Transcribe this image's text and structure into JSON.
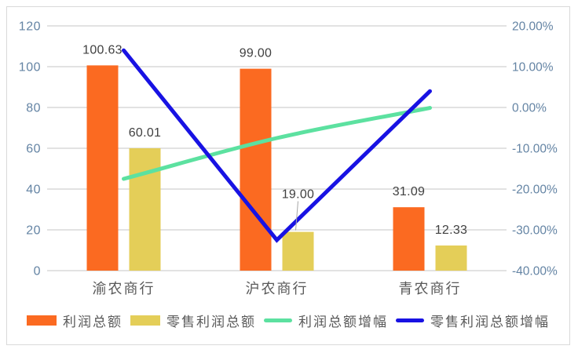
{
  "chart_data": {
    "type": "bar",
    "subtype": "combo-bar-line-dual-axis",
    "title": "",
    "xlabel": "",
    "ylabel": "",
    "grid": true,
    "legend_position": "bottom",
    "categories": [
      "渝农商行",
      "沪农商行",
      "青农商行"
    ],
    "bar_series": [
      {
        "name": "利润总额",
        "color": "#FB6A21",
        "axis": "left",
        "values": [
          100.63,
          99.0,
          31.09
        ],
        "labels": [
          "100.63",
          "99.00",
          "31.09"
        ],
        "label_raise": [
          0,
          0,
          0
        ]
      },
      {
        "name": "零售利润总额",
        "color": "#E4CE58",
        "axis": "left",
        "values": [
          60.01,
          19.0,
          12.33
        ],
        "labels": [
          "60.01",
          "19.00",
          "12.33"
        ],
        "label_raise": [
          0,
          28,
          0
        ]
      }
    ],
    "line_series": [
      {
        "name": "利润总额增幅",
        "color": "#5CE1A0",
        "axis": "right",
        "smooth": true,
        "values_pct": [
          -17.5,
          -7.5,
          -0.1
        ]
      },
      {
        "name": "零售利润总额增幅",
        "color": "#1812E3",
        "axis": "right",
        "smooth": false,
        "values_pct": [
          14.0,
          -32.5,
          4.0
        ]
      }
    ],
    "left_axis": {
      "min": 0,
      "max": 120,
      "ticks": [
        "120",
        "100",
        "80",
        "60",
        "40",
        "20",
        "0"
      ]
    },
    "right_axis": {
      "min": -40,
      "max": 20,
      "ticks": [
        "20.00%",
        "10.00%",
        "0.00%",
        "-10.00%",
        "-20.00%",
        "-30.00%",
        "-40.00%"
      ]
    }
  },
  "styles": {
    "gridline_color": "#d9d9d9",
    "frame_border_color": "#d9d9d9",
    "tick_label_color": "#6484A4",
    "data_label_color": "#404040",
    "category_label_color": "#595959",
    "legend_text_color": "#595959",
    "leader_line_color": "#a6a6a6",
    "background": "#ffffff"
  }
}
